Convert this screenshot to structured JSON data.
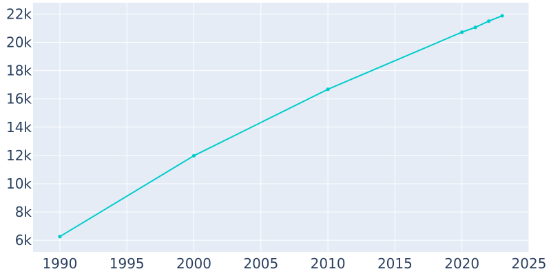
{
  "chart_data": {
    "type": "line",
    "title": "",
    "xlabel": "",
    "ylabel": "",
    "x": [
      1990,
      2000,
      2010,
      2020,
      2021,
      2022,
      2023
    ],
    "series": [
      {
        "values": [
          6260,
          11980,
          16680,
          20720,
          21060,
          21500,
          21880
        ],
        "color": "#00cccc"
      }
    ],
    "xlim": [
      1988,
      2025
    ],
    "ylim": [
      5180,
      22800
    ],
    "x_ticks": [
      1990,
      1995,
      2000,
      2005,
      2010,
      2015,
      2020,
      2025
    ],
    "x_tick_labels": [
      "1990",
      "1995",
      "2000",
      "2005",
      "2010",
      "2015",
      "2020",
      "2025"
    ],
    "y_ticks": [
      6000,
      8000,
      10000,
      12000,
      14000,
      16000,
      18000,
      20000,
      22000
    ],
    "y_tick_labels": [
      "6k",
      "8k",
      "10k",
      "12k",
      "14k",
      "16k",
      "18k",
      "20k",
      "22k"
    ],
    "grid": true,
    "legend": "none",
    "plot_background": "#e5ecf6",
    "grid_color": "#ffffff",
    "text_color": "#2a3f5f"
  }
}
